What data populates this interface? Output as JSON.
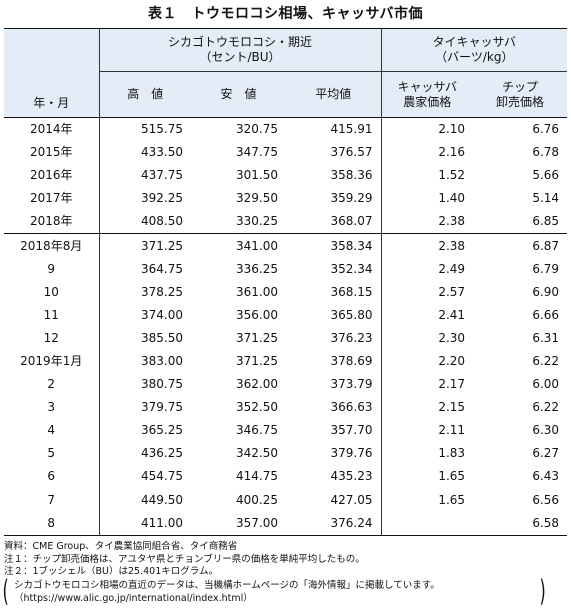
{
  "title": "表１　トウモロコシ相場、キャッサバ市価",
  "table": {
    "row_label_header": "年・月",
    "groups": [
      {
        "label": "シカゴトウモロコシ・期近\n（セント/BU）"
      },
      {
        "label": "タイキャッサバ\n（バーツ/kg）"
      }
    ],
    "columns": [
      "高　値",
      "安　値",
      "平均値",
      "キャッサバ\n農家価格",
      "チップ\n卸売価格"
    ],
    "annual_rows": [
      {
        "label": "2014年",
        "high": "515.75",
        "low": "320.75",
        "avg": "415.91",
        "farm": "2.10",
        "chip": "6.76"
      },
      {
        "label": "2015年",
        "high": "433.50",
        "low": "347.75",
        "avg": "376.57",
        "farm": "2.16",
        "chip": "6.78"
      },
      {
        "label": "2016年",
        "high": "437.75",
        "low": "301.50",
        "avg": "358.36",
        "farm": "1.52",
        "chip": "5.66"
      },
      {
        "label": "2017年",
        "high": "392.25",
        "low": "329.50",
        "avg": "359.29",
        "farm": "1.40",
        "chip": "5.14"
      },
      {
        "label": "2018年",
        "high": "408.50",
        "low": "330.25",
        "avg": "368.07",
        "farm": "2.38",
        "chip": "6.85"
      }
    ],
    "monthly_rows": [
      {
        "label": "2018年8月",
        "high": "371.25",
        "low": "341.00",
        "avg": "358.34",
        "farm": "2.38",
        "chip": "6.87"
      },
      {
        "label": "9",
        "high": "364.75",
        "low": "336.25",
        "avg": "352.34",
        "farm": "2.49",
        "chip": "6.79"
      },
      {
        "label": "10",
        "high": "378.25",
        "low": "361.00",
        "avg": "368.15",
        "farm": "2.57",
        "chip": "6.90"
      },
      {
        "label": "11",
        "high": "374.00",
        "low": "356.00",
        "avg": "365.80",
        "farm": "2.41",
        "chip": "6.66"
      },
      {
        "label": "12",
        "high": "385.50",
        "low": "371.25",
        "avg": "376.23",
        "farm": "2.30",
        "chip": "6.31"
      },
      {
        "label": "2019年1月",
        "high": "383.00",
        "low": "371.25",
        "avg": "378.69",
        "farm": "2.20",
        "chip": "6.22"
      },
      {
        "label": "2",
        "high": "380.75",
        "low": "362.00",
        "avg": "373.79",
        "farm": "2.17",
        "chip": "6.00"
      },
      {
        "label": "3",
        "high": "379.75",
        "low": "352.50",
        "avg": "366.63",
        "farm": "2.15",
        "chip": "6.22"
      },
      {
        "label": "4",
        "high": "365.25",
        "low": "346.75",
        "avg": "357.70",
        "farm": "2.11",
        "chip": "6.30"
      },
      {
        "label": "5",
        "high": "436.25",
        "low": "342.50",
        "avg": "379.76",
        "farm": "1.83",
        "chip": "6.27"
      },
      {
        "label": "6",
        "high": "454.75",
        "low": "414.75",
        "avg": "435.23",
        "farm": "1.65",
        "chip": "6.43"
      },
      {
        "label": "7",
        "high": "449.50",
        "low": "400.25",
        "avg": "427.05",
        "farm": "1.65",
        "chip": "6.56"
      },
      {
        "label": "8",
        "high": "411.00",
        "low": "357.00",
        "avg": "376.24",
        "farm": "",
        "chip": "6.58"
      }
    ]
  },
  "notes": {
    "source": "資料：CME Group、タイ農業協同組合省、タイ商務省",
    "note1": "注１：チップ卸売価格は、アユタヤ県とチョンブリー県の価格を単純平均したもの。",
    "note2": "注２：1ブッシェル（BU）は25.401キログラム。",
    "box_line1": "シカゴトウモロコシ相場の直近のデータは、当機構ホームページの「海外情報」に掲載しています。",
    "box_line2": "（https://www.alic.go.jp/international/index.html）",
    "paren_left": "(",
    "paren_right": ")"
  }
}
